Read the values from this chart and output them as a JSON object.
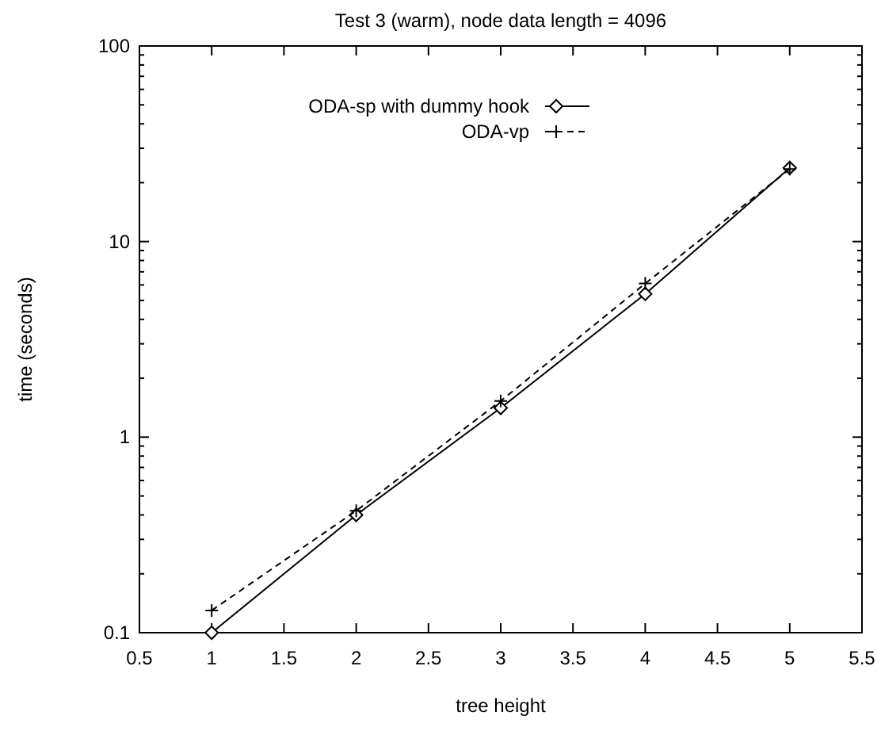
{
  "chart_data": {
    "type": "line",
    "title": "Test 3 (warm), node data length = 4096",
    "xlabel": "tree height",
    "ylabel": "time (seconds)",
    "x": [
      1,
      2,
      3,
      4,
      5
    ],
    "series": [
      {
        "name": "ODA-sp with dummy hook",
        "color": "#000000",
        "values": [
          0.1,
          0.4,
          1.41,
          5.4,
          23.8
        ],
        "marker": "diamond",
        "line_style": "solid"
      },
      {
        "name": "ODA-vp",
        "color": "#000000",
        "values": [
          0.13,
          0.42,
          1.53,
          6.1,
          23.5
        ],
        "marker": "cross",
        "line_style": "dashed"
      }
    ],
    "xlim": [
      0.5,
      5.5
    ],
    "xticks": [
      0.5,
      1,
      1.5,
      2,
      2.5,
      3,
      3.5,
      4,
      4.5,
      5,
      5.5
    ],
    "ylim": [
      0.1,
      100
    ],
    "log": "y",
    "yticks": [
      0.1,
      {
        "value": 0.2,
        "label": null
      },
      {
        "value": 0.3,
        "label": null
      },
      {
        "value": 0.4,
        "label": null
      },
      {
        "value": 0.5,
        "label": null
      },
      {
        "value": 0.6,
        "label": null
      },
      {
        "value": 0.7,
        "label": null
      },
      {
        "value": 0.8,
        "label": null
      },
      {
        "value": 0.9,
        "label": null
      },
      1,
      {
        "value": 2,
        "label": null
      },
      {
        "value": 3,
        "label": null
      },
      {
        "value": 4,
        "label": null
      },
      {
        "value": 5,
        "label": null
      },
      {
        "value": 6,
        "label": null
      },
      {
        "value": 7,
        "label": null
      },
      {
        "value": 8,
        "label": null
      },
      {
        "value": 9,
        "label": null
      },
      10,
      {
        "value": 20,
        "label": null
      },
      {
        "value": 30,
        "label": null
      },
      {
        "value": 40,
        "label": null
      },
      {
        "value": 50,
        "label": null
      },
      {
        "value": 60,
        "label": null
      },
      {
        "value": 70,
        "label": null
      },
      {
        "value": 80,
        "label": null
      },
      {
        "value": 90,
        "label": null
      },
      100
    ],
    "legend": "top left",
    "grid": false
  }
}
